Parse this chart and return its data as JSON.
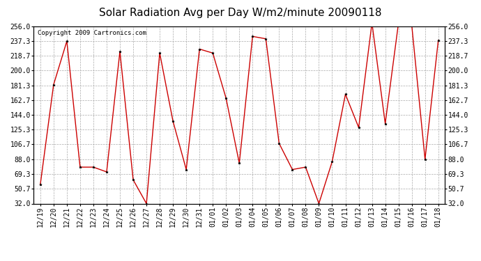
{
  "title": "Solar Radiation Avg per Day W/m2/minute 20090118",
  "copyright": "Copyright 2009 Cartronics.com",
  "labels": [
    "12/19",
    "12/20",
    "12/21",
    "12/22",
    "12/23",
    "12/24",
    "12/25",
    "12/26",
    "12/27",
    "12/28",
    "12/29",
    "12/30",
    "12/31",
    "01/01",
    "01/02",
    "01/03",
    "01/04",
    "01/05",
    "01/06",
    "01/07",
    "01/08",
    "01/09",
    "01/10",
    "01/11",
    "01/12",
    "01/13",
    "01/14",
    "01/15",
    "01/16",
    "01/17",
    "01/18"
  ],
  "values": [
    56,
    182,
    237,
    78,
    78,
    72,
    224,
    62,
    32,
    222,
    136,
    75,
    227,
    222,
    165,
    83,
    243,
    240,
    108,
    75,
    78,
    32,
    85,
    170,
    128,
    260,
    133,
    260,
    257,
    88,
    238
  ],
  "line_color": "#cc0000",
  "marker_color": "#000000",
  "bg_color": "#ffffff",
  "plot_bg_color": "#ffffff",
  "grid_color": "#aaaaaa",
  "title_fontsize": 11,
  "tick_fontsize": 7,
  "copyright_fontsize": 6.5,
  "ylim": [
    32.0,
    256.0
  ],
  "yticks": [
    32.0,
    50.7,
    69.3,
    88.0,
    106.7,
    125.3,
    144.0,
    162.7,
    181.3,
    200.0,
    218.7,
    237.3,
    256.0
  ],
  "ytick_labels": [
    "32.0",
    "50.7",
    "69.3",
    "88.0",
    "106.7",
    "125.3",
    "144.0",
    "162.7",
    "181.3",
    "200.0",
    "218.7",
    "237.3",
    "256.0"
  ]
}
